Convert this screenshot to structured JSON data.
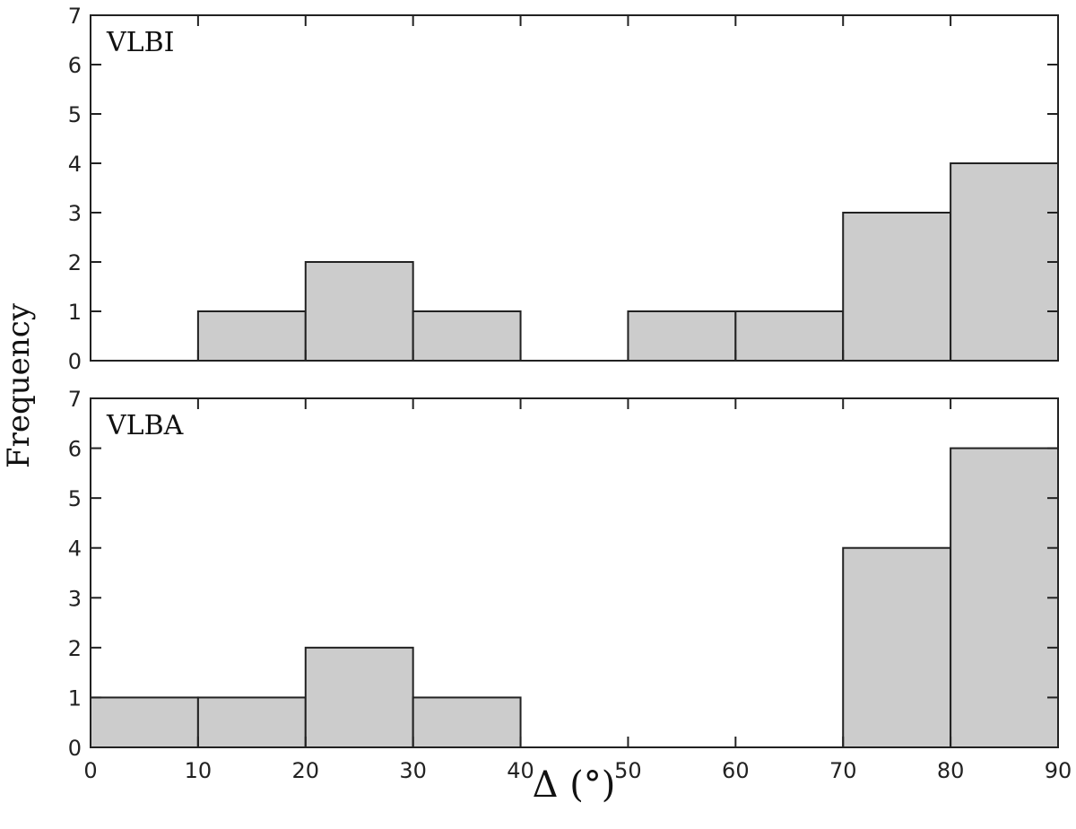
{
  "chart_data": {
    "type": "bar",
    "xlabel": "Δ (°)",
    "ylabel": "Frequency",
    "xlim": [
      0,
      90
    ],
    "ylim": [
      0,
      7
    ],
    "xticks": [
      0,
      10,
      20,
      30,
      40,
      50,
      60,
      70,
      80,
      90
    ],
    "yticks": [
      0,
      1,
      2,
      3,
      4,
      5,
      6,
      7
    ],
    "bin_edges": [
      0,
      10,
      20,
      30,
      40,
      50,
      60,
      70,
      80,
      90
    ],
    "bar_color": "#cccccc",
    "edge_color": "#222222",
    "panels": [
      {
        "label": "VLBI",
        "values": [
          0,
          1,
          2,
          1,
          0,
          1,
          1,
          3,
          4
        ]
      },
      {
        "label": "VLBA",
        "values": [
          1,
          1,
          2,
          1,
          0,
          0,
          0,
          4,
          6
        ]
      }
    ]
  }
}
